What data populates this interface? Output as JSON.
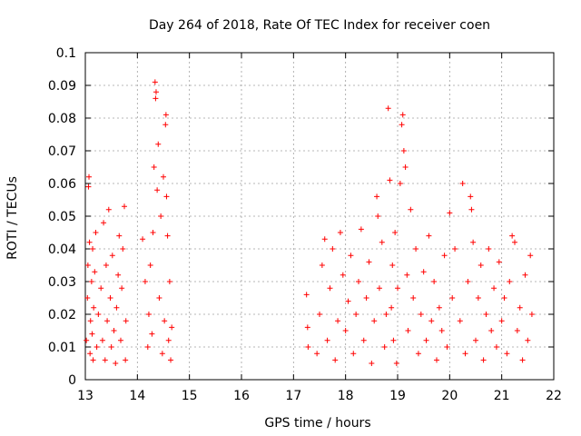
{
  "chart_data": {
    "type": "scatter",
    "title": "Day 264 of 2018, Rate Of TEC Index for receiver coen",
    "xlabel": "GPS time / hours",
    "ylabel": "ROTI / TECUs",
    "xlim": [
      13,
      22
    ],
    "ylim": [
      0,
      0.1
    ],
    "x_ticks": [
      13,
      14,
      15,
      16,
      17,
      18,
      19,
      20,
      21,
      22
    ],
    "y_ticks": [
      0,
      0.01,
      0.02,
      0.03,
      0.04,
      0.05,
      0.06,
      0.07,
      0.08,
      0.09,
      0.1
    ],
    "x_tick_labels": [
      "13",
      "14",
      "15",
      "16",
      "17",
      "18",
      "19",
      "20",
      "21",
      "22"
    ],
    "y_tick_labels": [
      "0",
      "0.01",
      "0.02",
      "0.03",
      "0.04",
      "0.05",
      "0.06",
      "0.07",
      "0.08",
      "0.09",
      "0.1"
    ],
    "grid": true,
    "marker": "plus",
    "color": "#ff0000",
    "series": [
      {
        "values": [
          [
            13.02,
            0.012
          ],
          [
            13.04,
            0.025
          ],
          [
            13.05,
            0.035
          ],
          [
            13.06,
            0.059
          ],
          [
            13.07,
            0.062
          ],
          [
            13.08,
            0.042
          ],
          [
            13.09,
            0.008
          ],
          [
            13.1,
            0.018
          ],
          [
            13.12,
            0.03
          ],
          [
            13.13,
            0.014
          ],
          [
            13.14,
            0.04
          ],
          [
            13.15,
            0.006
          ],
          [
            13.16,
            0.022
          ],
          [
            13.18,
            0.033
          ],
          [
            13.2,
            0.045
          ],
          [
            13.22,
            0.01
          ],
          [
            13.25,
            0.02
          ],
          [
            13.3,
            0.028
          ],
          [
            13.33,
            0.012
          ],
          [
            13.35,
            0.048
          ],
          [
            13.38,
            0.006
          ],
          [
            13.4,
            0.035
          ],
          [
            13.42,
            0.018
          ],
          [
            13.45,
            0.052
          ],
          [
            13.48,
            0.025
          ],
          [
            13.5,
            0.01
          ],
          [
            13.52,
            0.038
          ],
          [
            13.55,
            0.015
          ],
          [
            13.58,
            0.005
          ],
          [
            13.6,
            0.022
          ],
          [
            13.63,
            0.032
          ],
          [
            13.65,
            0.044
          ],
          [
            13.68,
            0.012
          ],
          [
            13.7,
            0.028
          ],
          [
            13.72,
            0.04
          ],
          [
            13.75,
            0.053
          ],
          [
            13.77,
            0.006
          ],
          [
            13.78,
            0.018
          ],
          [
            14.1,
            0.043
          ],
          [
            14.15,
            0.03
          ],
          [
            14.2,
            0.01
          ],
          [
            14.22,
            0.02
          ],
          [
            14.25,
            0.035
          ],
          [
            14.28,
            0.014
          ],
          [
            14.3,
            0.045
          ],
          [
            14.32,
            0.065
          ],
          [
            14.34,
            0.091
          ],
          [
            14.35,
            0.086
          ],
          [
            14.36,
            0.088
          ],
          [
            14.38,
            0.058
          ],
          [
            14.4,
            0.072
          ],
          [
            14.42,
            0.025
          ],
          [
            14.45,
            0.05
          ],
          [
            14.48,
            0.008
          ],
          [
            14.5,
            0.062
          ],
          [
            14.52,
            0.018
          ],
          [
            14.54,
            0.078
          ],
          [
            14.55,
            0.081
          ],
          [
            14.56,
            0.056
          ],
          [
            14.58,
            0.044
          ],
          [
            14.6,
            0.012
          ],
          [
            14.62,
            0.03
          ],
          [
            14.64,
            0.006
          ],
          [
            14.66,
            0.016
          ],
          [
            17.25,
            0.026
          ],
          [
            17.27,
            0.016
          ],
          [
            17.28,
            0.01
          ],
          [
            17.45,
            0.008
          ],
          [
            17.5,
            0.02
          ],
          [
            17.55,
            0.035
          ],
          [
            17.6,
            0.043
          ],
          [
            17.65,
            0.012
          ],
          [
            17.7,
            0.028
          ],
          [
            17.75,
            0.04
          ],
          [
            17.8,
            0.006
          ],
          [
            17.85,
            0.018
          ],
          [
            17.9,
            0.045
          ],
          [
            17.95,
            0.032
          ],
          [
            18.0,
            0.015
          ],
          [
            18.05,
            0.024
          ],
          [
            18.1,
            0.038
          ],
          [
            18.15,
            0.008
          ],
          [
            18.2,
            0.02
          ],
          [
            18.25,
            0.03
          ],
          [
            18.3,
            0.046
          ],
          [
            18.35,
            0.012
          ],
          [
            18.4,
            0.025
          ],
          [
            18.45,
            0.036
          ],
          [
            18.5,
            0.005
          ],
          [
            18.55,
            0.018
          ],
          [
            18.6,
            0.056
          ],
          [
            18.62,
            0.05
          ],
          [
            18.65,
            0.028
          ],
          [
            18.7,
            0.042
          ],
          [
            18.75,
            0.01
          ],
          [
            18.78,
            0.02
          ],
          [
            18.82,
            0.083
          ],
          [
            18.85,
            0.061
          ],
          [
            18.88,
            0.022
          ],
          [
            18.9,
            0.035
          ],
          [
            18.92,
            0.012
          ],
          [
            18.95,
            0.045
          ],
          [
            18.98,
            0.005
          ],
          [
            19.0,
            0.028
          ],
          [
            19.05,
            0.06
          ],
          [
            19.08,
            0.078
          ],
          [
            19.1,
            0.081
          ],
          [
            19.12,
            0.07
          ],
          [
            19.15,
            0.065
          ],
          [
            19.18,
            0.032
          ],
          [
            19.2,
            0.015
          ],
          [
            19.25,
            0.052
          ],
          [
            19.3,
            0.025
          ],
          [
            19.35,
            0.04
          ],
          [
            19.4,
            0.008
          ],
          [
            19.45,
            0.02
          ],
          [
            19.5,
            0.033
          ],
          [
            19.55,
            0.012
          ],
          [
            19.6,
            0.044
          ],
          [
            19.65,
            0.018
          ],
          [
            19.7,
            0.03
          ],
          [
            19.75,
            0.006
          ],
          [
            19.8,
            0.022
          ],
          [
            19.85,
            0.015
          ],
          [
            19.9,
            0.038
          ],
          [
            19.95,
            0.01
          ],
          [
            20.0,
            0.051
          ],
          [
            20.05,
            0.025
          ],
          [
            20.1,
            0.04
          ],
          [
            20.2,
            0.018
          ],
          [
            20.25,
            0.06
          ],
          [
            20.3,
            0.008
          ],
          [
            20.35,
            0.03
          ],
          [
            20.4,
            0.056
          ],
          [
            20.42,
            0.052
          ],
          [
            20.45,
            0.042
          ],
          [
            20.5,
            0.012
          ],
          [
            20.55,
            0.025
          ],
          [
            20.6,
            0.035
          ],
          [
            20.65,
            0.006
          ],
          [
            20.7,
            0.02
          ],
          [
            20.75,
            0.04
          ],
          [
            20.8,
            0.015
          ],
          [
            20.85,
            0.028
          ],
          [
            20.9,
            0.01
          ],
          [
            20.95,
            0.036
          ],
          [
            21.0,
            0.018
          ],
          [
            21.05,
            0.025
          ],
          [
            21.1,
            0.008
          ],
          [
            21.15,
            0.03
          ],
          [
            21.2,
            0.044
          ],
          [
            21.25,
            0.042
          ],
          [
            21.3,
            0.015
          ],
          [
            21.35,
            0.022
          ],
          [
            21.4,
            0.006
          ],
          [
            21.45,
            0.032
          ],
          [
            21.5,
            0.012
          ],
          [
            21.55,
            0.038
          ],
          [
            21.58,
            0.02
          ]
        ]
      }
    ]
  }
}
